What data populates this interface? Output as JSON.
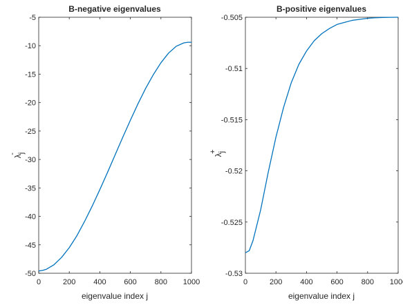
{
  "chart_data": [
    {
      "type": "line",
      "title": "B-negative eigenvalues",
      "xlabel": "eigenvalue index j",
      "ylabel": {
        "base": "λ",
        "sub": "j",
        "sup": "-"
      },
      "xlim": [
        0,
        1000
      ],
      "ylim": [
        -50,
        -5
      ],
      "xticks": [
        0,
        200,
        400,
        600,
        800,
        1000
      ],
      "xtick_labels": [
        "0",
        "200",
        "400",
        "600",
        "800",
        "1000"
      ],
      "yticks": [
        -50,
        -45,
        -40,
        -35,
        -30,
        -25,
        -20,
        -15,
        -10,
        -5
      ],
      "ytick_labels": [
        "-50",
        "-45",
        "-40",
        "-35",
        "-30",
        "-25",
        "-20",
        "-15",
        "-10",
        "-5"
      ],
      "grid": false,
      "series": [
        {
          "color": "#0072bd",
          "x": [
            0,
            25,
            50,
            100,
            150,
            200,
            250,
            300,
            350,
            400,
            450,
            500,
            550,
            600,
            650,
            700,
            750,
            800,
            850,
            900,
            950,
            975,
            1000
          ],
          "y": [
            -49.6,
            -49.5,
            -49.3,
            -48.5,
            -47.2,
            -45.5,
            -43.4,
            -40.9,
            -38.2,
            -35.3,
            -32.3,
            -29.2,
            -26.1,
            -23.1,
            -20.2,
            -17.5,
            -15.1,
            -13.0,
            -11.3,
            -10.1,
            -9.5,
            -9.4,
            -9.4
          ]
        }
      ]
    },
    {
      "type": "line",
      "title": "B-positive eigenvalues",
      "xlabel": "eigenvalue index j",
      "ylabel": {
        "base": "λ",
        "sub": "j",
        "sup": "+"
      },
      "xlim": [
        0,
        1000
      ],
      "ylim": [
        -0.53,
        -0.505
      ],
      "xticks": [
        0,
        200,
        400,
        600,
        800,
        1000
      ],
      "xtick_labels": [
        "0",
        "200",
        "400",
        "600",
        "800",
        "1000"
      ],
      "yticks": [
        -0.53,
        -0.525,
        -0.52,
        -0.515,
        -0.51,
        -0.505
      ],
      "ytick_labels": [
        "-0.53",
        "-0.525",
        "-0.52",
        "-0.515",
        "-0.51",
        "-0.505"
      ],
      "grid": false,
      "series": [
        {
          "color": "#0072bd",
          "x": [
            0,
            25,
            50,
            100,
            150,
            200,
            250,
            300,
            350,
            400,
            450,
            500,
            550,
            600,
            650,
            700,
            750,
            800,
            850,
            900,
            950,
            1000
          ],
          "y": [
            -0.528,
            -0.5278,
            -0.5268,
            -0.5238,
            -0.5201,
            -0.5167,
            -0.5138,
            -0.5114,
            -0.5096,
            -0.5083,
            -0.5073,
            -0.5066,
            -0.5061,
            -0.5057,
            -0.5055,
            -0.5053,
            -0.5052,
            -0.5051,
            -0.50505,
            -0.50502,
            -0.50501,
            -0.505
          ]
        }
      ]
    }
  ]
}
